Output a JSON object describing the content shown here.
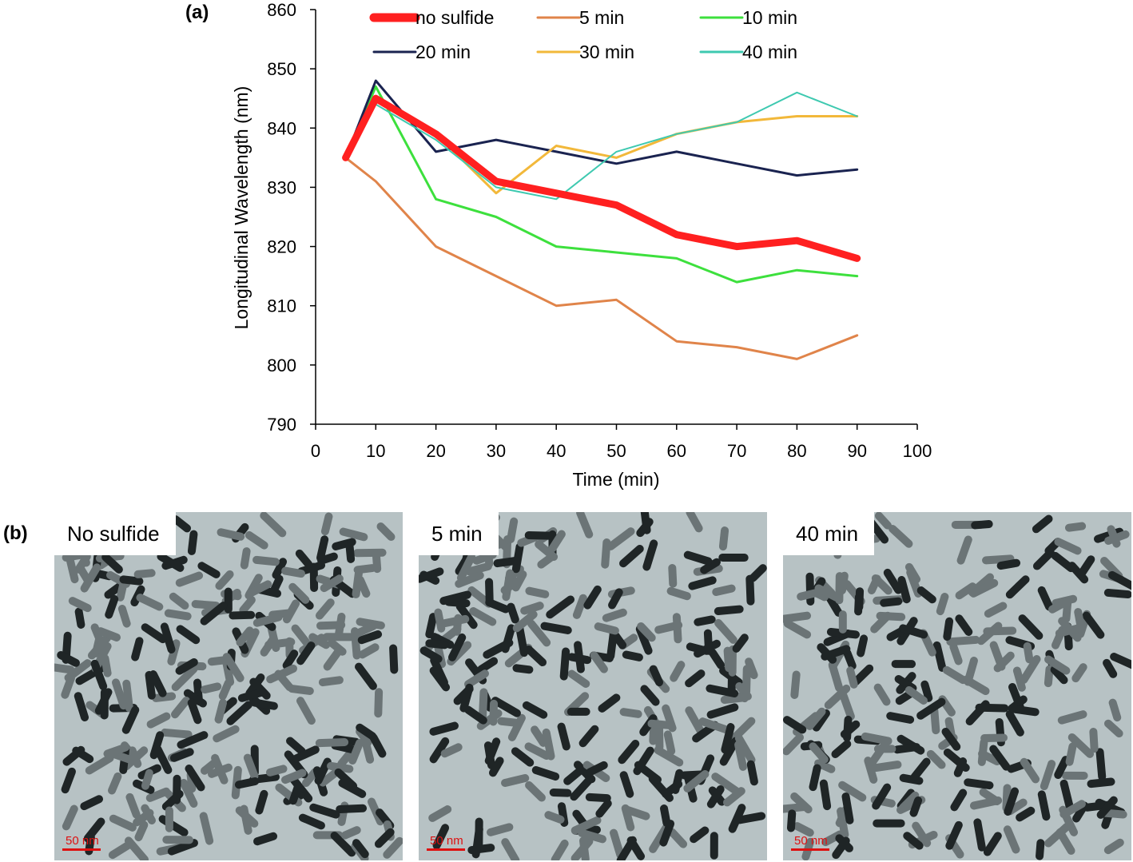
{
  "panels": {
    "a_label": "(a)",
    "b_label": "(b)"
  },
  "chart_data": {
    "type": "line",
    "title": "",
    "xlabel": "Time (min)",
    "ylabel": "Longitudinal Wavelength (nm)",
    "xlim": [
      0,
      100
    ],
    "ylim": [
      790,
      860
    ],
    "xticks": [
      0,
      10,
      20,
      30,
      40,
      50,
      60,
      70,
      80,
      90,
      100
    ],
    "yticks": [
      790,
      800,
      810,
      820,
      830,
      840,
      850,
      860
    ],
    "grid": false,
    "legend_position": "top",
    "x": [
      5,
      10,
      20,
      30,
      40,
      50,
      60,
      70,
      80,
      90
    ],
    "series": [
      {
        "name": "no sulfide",
        "color": "#ff2020",
        "width": "thick",
        "values": [
          835,
          845,
          839,
          831,
          829,
          827,
          822,
          820,
          821,
          818
        ]
      },
      {
        "name": "5 min",
        "color": "#e0844a",
        "width": "normal",
        "values": [
          835,
          831,
          820,
          815,
          810,
          811,
          804,
          803,
          801,
          805
        ]
      },
      {
        "name": "10 min",
        "color": "#3de03d",
        "width": "normal",
        "values": [
          835,
          847,
          828,
          825,
          820,
          819,
          818,
          814,
          816,
          815
        ]
      },
      {
        "name": "20 min",
        "color": "#1a2350",
        "width": "normal",
        "values": [
          835,
          848,
          836,
          838,
          836,
          834,
          836,
          834,
          832,
          833
        ]
      },
      {
        "name": "30 min",
        "color": "#f2b83a",
        "width": "normal",
        "values": [
          835,
          845,
          839,
          829,
          837,
          835,
          839,
          841,
          842,
          842
        ]
      },
      {
        "name": "40 min",
        "color": "#3ec9b0",
        "width": "thin",
        "values": [
          835,
          844,
          838,
          830,
          828,
          836,
          839,
          841,
          846,
          842
        ]
      }
    ]
  },
  "tem_images": [
    {
      "label": "No sulfide",
      "scale": "50 nm",
      "icon": "tem-micrograph-image"
    },
    {
      "label": "5 min",
      "scale": "50 nm",
      "icon": "tem-micrograph-image"
    },
    {
      "label": "40 min",
      "scale": "50 nm",
      "icon": "tem-micrograph-image"
    }
  ]
}
